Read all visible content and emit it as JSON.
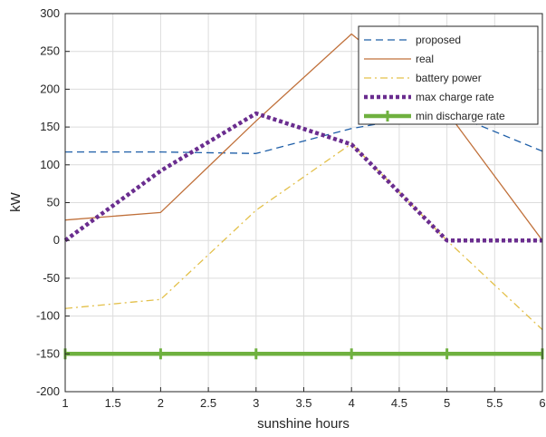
{
  "chart_data": {
    "type": "line",
    "title": "",
    "xlabel": "sunshine hours",
    "ylabel": "kW",
    "xlim": [
      1,
      6
    ],
    "ylim": [
      -200,
      300
    ],
    "xticks": [
      1,
      1.5,
      2,
      2.5,
      3,
      3.5,
      4,
      4.5,
      5,
      5.5,
      6
    ],
    "yticks": [
      -200,
      -150,
      -100,
      -50,
      0,
      50,
      100,
      150,
      200,
      250,
      300
    ],
    "grid": true,
    "legend_position": "top-right",
    "x": [
      1,
      2,
      3,
      4,
      5,
      6
    ],
    "series": [
      {
        "name": "proposed",
        "values": [
          117,
          117,
          115,
          148,
          170,
          118
        ],
        "color": "#1f5fa8",
        "style": "dashed"
      },
      {
        "name": "real",
        "values": [
          27,
          37,
          158,
          273,
          170,
          0
        ],
        "color": "#c0703a",
        "style": "solid"
      },
      {
        "name": "battery power",
        "values": [
          -90,
          -78,
          40,
          128,
          0,
          -118
        ],
        "color": "#e3c04a",
        "style": "dashdot"
      },
      {
        "name": "max charge rate",
        "values": [
          0,
          92,
          168,
          127,
          0,
          0
        ],
        "color": "#6a2d8f",
        "style": "dotted-thick"
      },
      {
        "name": "min discharge rate",
        "values": [
          -150,
          -150,
          -150,
          -150,
          -150,
          -150
        ],
        "color": "#6fb13f",
        "style": "solid-thick-markers"
      }
    ]
  }
}
